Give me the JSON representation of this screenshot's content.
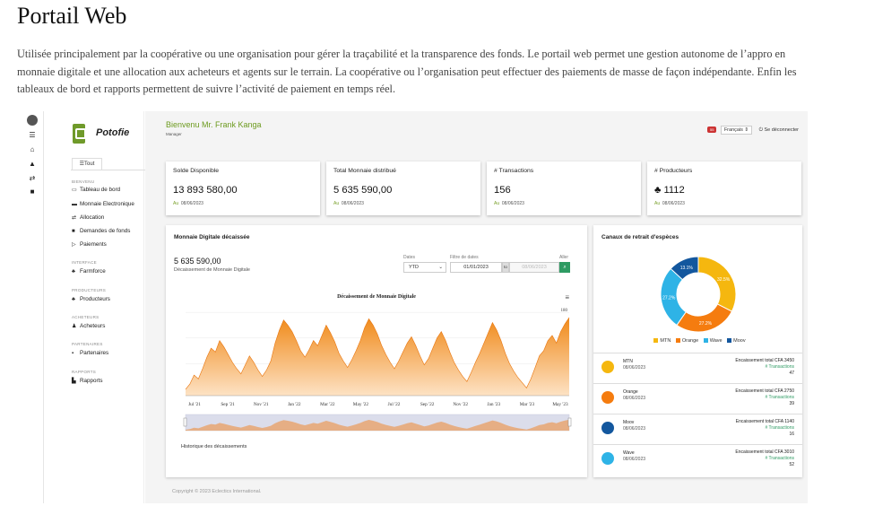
{
  "heading": "Portail Web",
  "description": "Utilisée principalement par la coopérative ou une organisation pour gérer la traçabilité et la transparence des fonds. Le portail web permet une gestion autonome de l’appro en monnaie digitale et une allocation aux acheteurs et agents sur le terrain. La coopérative ou l’organisation peut effectuer des paiements de masse de façon indépendante. Enfin les tableaux de bord et rapports permettent de suivre l’activité de paiement en temps réel.",
  "app": {
    "brand": "Potofie",
    "welcome": "Bienvenu Mr. Frank Kanga",
    "role": "Manager",
    "language": "Français",
    "logout": "Se déconnecter",
    "notif_count": "55",
    "footer": "Copyright © 2023 Eclectics International."
  },
  "sidebar": {
    "tab": "Tout",
    "sections": [
      {
        "label": "BIENVENU",
        "items": [
          {
            "label": "Tableau de bord",
            "icon": "monitor-icon"
          },
          {
            "label": "Monnaie Electronique",
            "icon": "wallet-icon"
          },
          {
            "label": "Allocation",
            "icon": "transfer-icon"
          },
          {
            "label": "Demandes de fonds",
            "icon": "video-icon"
          },
          {
            "label": "Paiements",
            "icon": "send-icon"
          }
        ]
      },
      {
        "label": "INTERFACE",
        "items": [
          {
            "label": "Farmforce",
            "icon": "users-icon"
          }
        ]
      },
      {
        "label": "PRODUCTEURS",
        "items": [
          {
            "label": "Producteurs",
            "icon": "users-icon"
          }
        ]
      },
      {
        "label": "ACHETEURS",
        "items": [
          {
            "label": "Acheteurs",
            "icon": "user-icon"
          }
        ]
      },
      {
        "label": "PARTENAIRES",
        "items": [
          {
            "label": "Partenaires",
            "icon": "briefcase-icon"
          }
        ]
      },
      {
        "label": "RAPPORTS",
        "items": [
          {
            "label": "Rapports",
            "icon": "report-icon"
          }
        ]
      }
    ]
  },
  "cards": [
    {
      "title": "Solde Disponible",
      "value": "13 893 580,00",
      "prefix": "Au",
      "date": "08/06/2023"
    },
    {
      "title": "Total Monnaie distribué",
      "value": "5 635 590,00",
      "prefix": "Au",
      "date": "08/06/2023"
    },
    {
      "title": "# Transactions",
      "value": "156",
      "prefix": "Au",
      "date": "08/06/2023"
    },
    {
      "title": "# Producteurs",
      "value": "1112",
      "prefix": "Au",
      "date": "08/06/2023"
    }
  ],
  "disbursed": {
    "title": "Monnaie Digitale décaissée",
    "amount": "5 635 590,00",
    "subtitle": "Décaissement de Monnaie Digitale",
    "dates_label": "Dates",
    "dates_value": "YTD",
    "filter_label": "Filtre de dates",
    "date_from": "01/01/2023",
    "to": "to",
    "date_to": "08/06/2023",
    "go_label": "Aller",
    "history": "Historique des décaissements"
  },
  "chart_data": {
    "type": "area",
    "title": "Décaissement de Monnaie Digitale",
    "x_ticks": [
      "Jul '21",
      "Sep '21",
      "Nov '21",
      "Jan '22",
      "Mar '22",
      "May '22",
      "Jul '22",
      "Sep '22",
      "Nov '22",
      "Jan '23",
      "Mar '23",
      "May '23"
    ],
    "y_ticks": [
      120,
      140,
      160,
      180
    ],
    "ylim": [
      115,
      185
    ],
    "values": [
      120,
      124,
      131,
      128,
      136,
      145,
      152,
      149,
      158,
      153,
      147,
      141,
      136,
      132,
      139,
      146,
      141,
      135,
      130,
      135,
      142,
      156,
      166,
      174,
      170,
      165,
      158,
      150,
      145,
      151,
      158,
      154,
      162,
      170,
      164,
      157,
      148,
      142,
      137,
      143,
      150,
      158,
      168,
      175,
      170,
      163,
      154,
      147,
      141,
      136,
      142,
      149,
      156,
      161,
      154,
      146,
      139,
      144,
      152,
      160,
      165,
      158,
      149,
      141,
      135,
      130,
      126,
      133,
      141,
      148,
      156,
      164,
      172,
      166,
      158,
      148,
      140,
      134,
      129,
      125,
      121,
      128,
      137,
      146,
      150,
      158,
      162,
      156,
      165,
      171,
      176
    ]
  },
  "channels": {
    "title": "Canaux de retrait d'espèces",
    "chart_data": {
      "type": "pie",
      "categories": [
        "MTN",
        "Orange",
        "Wave",
        "Moov"
      ],
      "values": [
        32.5,
        27.2,
        27.2,
        13.1
      ],
      "labels": [
        "32.5%",
        "27.2%",
        "27.2%",
        "13.1%"
      ],
      "colors": [
        "#f5b70f",
        "#f57c0f",
        "#2eb3e6",
        "#13579e"
      ]
    },
    "rows": [
      {
        "name": "MTN",
        "date": "08/06/2023",
        "total": "Encaissement total CFA 3450",
        "tx_label": "# Transactions",
        "tx": "47",
        "color": "#f5b70f"
      },
      {
        "name": "Orange",
        "date": "08/06/2023",
        "total": "Encaissement total CFA 2750",
        "tx_label": "# Transactions",
        "tx": "39",
        "color": "#f57c0f"
      },
      {
        "name": "Moov",
        "date": "08/06/2023",
        "total": "Encaissement total CFA 1140",
        "tx_label": "# Transactions",
        "tx": "16",
        "color": "#13579e"
      },
      {
        "name": "Wave",
        "date": "08/06/2023",
        "total": "Encaissement total CFA 3010",
        "tx_label": "# Transactions",
        "tx": "52",
        "color": "#2eb3e6"
      }
    ]
  }
}
